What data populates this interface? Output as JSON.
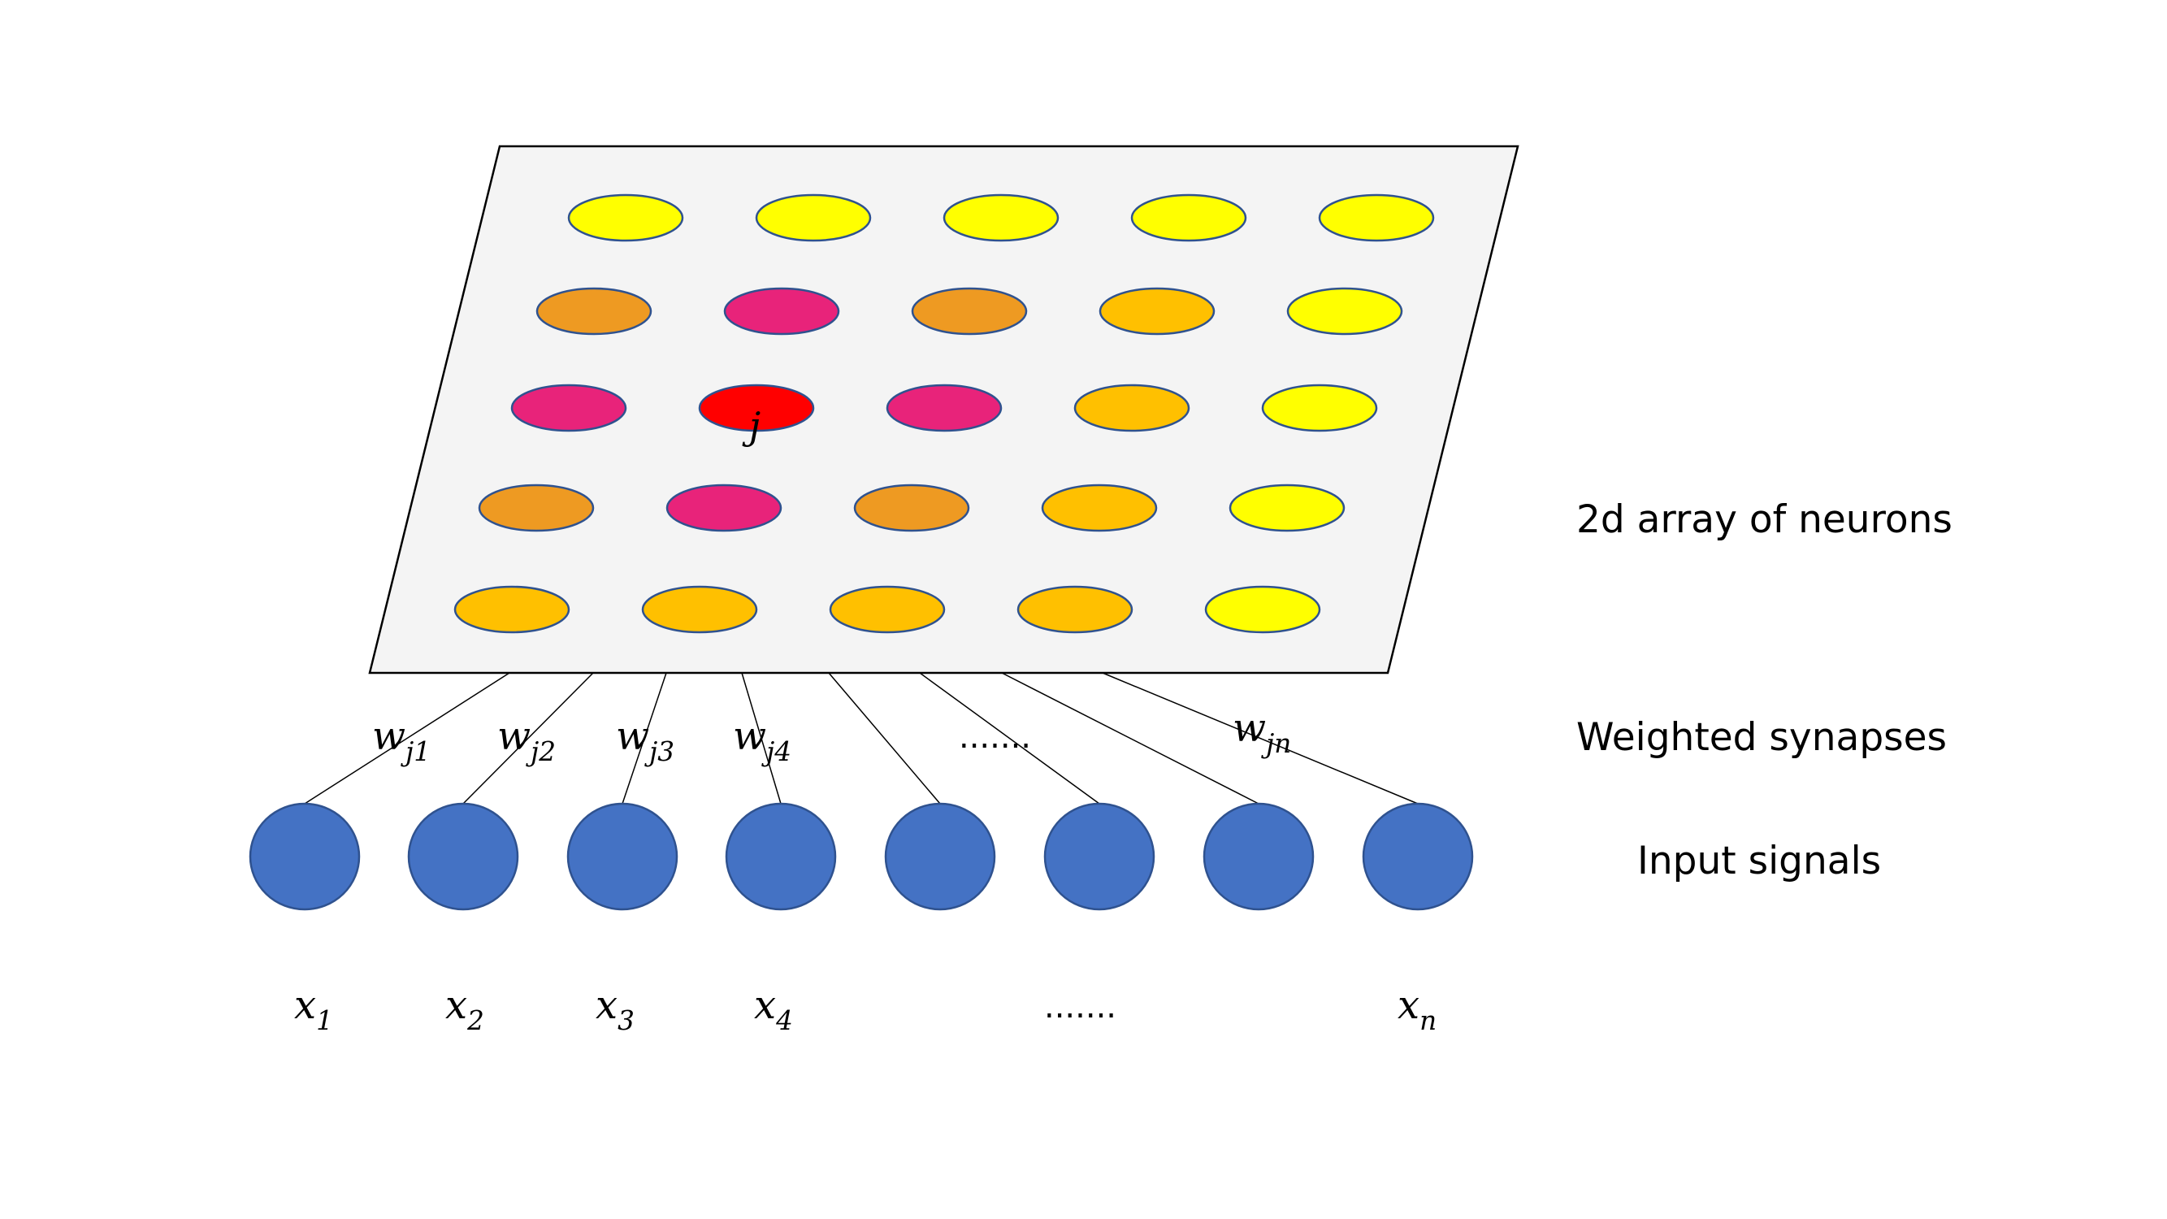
{
  "grid": {
    "rows": [
      [
        "#FFFF00",
        "#FFFF00",
        "#FFFF00",
        "#FFFF00",
        "#FFFF00"
      ],
      [
        "#EE9A22",
        "#E8237A",
        "#EE9A22",
        "#FFC000",
        "#FFFF00"
      ],
      [
        "#E8237A",
        "#FF0000",
        "#E8237A",
        "#FFC000",
        "#FFFF00"
      ],
      [
        "#EE9A22",
        "#E8237A",
        "#EE9A22",
        "#FFC000",
        "#FFFF00"
      ],
      [
        "#FFC000",
        "#FFC000",
        "#FFC000",
        "#FFC000",
        "#FFFF00"
      ]
    ],
    "winner_label": "j"
  },
  "weights": [
    {
      "base": "w",
      "sub": "j1"
    },
    {
      "base": "w",
      "sub": "j2"
    },
    {
      "base": "w",
      "sub": "j3"
    },
    {
      "base": "w",
      "sub": "j4"
    },
    {
      "base": "",
      "sub": "",
      "text": "......."
    },
    {
      "base": "w",
      "sub": "jn"
    }
  ],
  "inputs": [
    {
      "base": "x",
      "sub": "1"
    },
    {
      "base": "x",
      "sub": "2"
    },
    {
      "base": "x",
      "sub": "3"
    },
    {
      "base": "x",
      "sub": "4"
    },
    {
      "base": "",
      "sub": "",
      "text": "......."
    },
    {
      "base": "x",
      "sub": "n"
    }
  ],
  "labels": {
    "array": "2d array of neurons",
    "synapses": "Weighted synapses",
    "inputs": "Input signals"
  },
  "colors": {
    "plane_fill": "#F4F4F4",
    "input_node": "#4472C4",
    "node_stroke": "#2F528F"
  }
}
